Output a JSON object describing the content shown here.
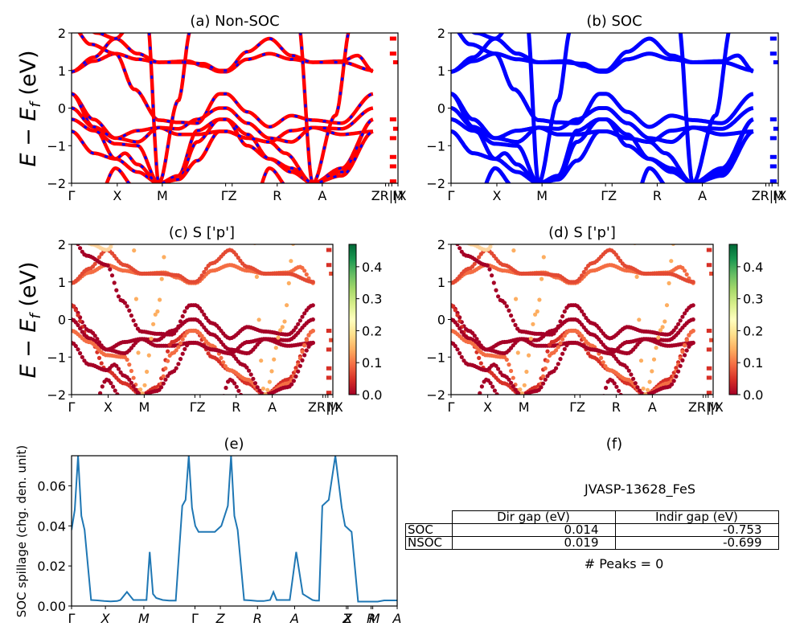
{
  "chart_data": [
    {
      "id": "a",
      "type": "line",
      "title": "(a) Non-SOC",
      "ylabel": "E − E_f (eV)",
      "ylim": [
        -2,
        2
      ],
      "yticks": [
        "2",
        "1",
        "0",
        "−1",
        "−2"
      ],
      "xticks": [
        "Γ",
        "X",
        "M",
        "Γ",
        "Z",
        "R",
        "A",
        "Z",
        "R",
        "|X",
        "M"
      ],
      "tick_labels_rendered": [
        "Γ",
        "X",
        "M",
        "ΓZ",
        "R",
        "A",
        "ZR||X",
        "M"
      ],
      "series": [
        {
          "name": "Non-SOC",
          "color": "#ff0000",
          "style": "solid"
        },
        {
          "name": "SOC overlay",
          "color": "#0000ff",
          "style": "dashed"
        }
      ]
    },
    {
      "id": "b",
      "type": "line",
      "title": "(b) SOC",
      "ylim": [
        -2,
        2
      ],
      "yticks": [
        "2",
        "1",
        "0",
        "−1",
        "−2"
      ],
      "tick_labels_rendered": [
        "Γ",
        "X",
        "M",
        "ΓZ",
        "R",
        "A",
        "ZR||X",
        "M"
      ],
      "series": [
        {
          "name": "SOC",
          "color": "#0000ff",
          "style": "solid"
        }
      ]
    },
    {
      "id": "c",
      "type": "scatter",
      "title": "(c)  S ['p']",
      "ylabel": "E − E_f (eV)",
      "ylim": [
        -2,
        2
      ],
      "yticks": [
        "2",
        "1",
        "0",
        "−1",
        "−2"
      ],
      "tick_labels_rendered": [
        "Γ",
        "X",
        "M",
        "ΓZ",
        "R",
        "A",
        "ZR||X",
        "M"
      ],
      "colorbar": {
        "cmap": "RdYlGn",
        "range": [
          0,
          0.47
        ],
        "ticks": [
          "0.0",
          "0.1",
          "0.2",
          "0.3",
          "0.4"
        ]
      }
    },
    {
      "id": "d",
      "type": "scatter",
      "title": "(d) S ['p']",
      "ylim": [
        -2,
        2
      ],
      "yticks": [
        "2",
        "1",
        "0",
        "−1",
        "−2"
      ],
      "tick_labels_rendered": [
        "Γ",
        "X",
        "M",
        "ΓZ",
        "R",
        "A",
        "ZR||X",
        "M"
      ],
      "colorbar": {
        "cmap": "RdYlGn",
        "range": [
          0,
          0.47
        ],
        "ticks": [
          "0.0",
          "0.1",
          "0.2",
          "0.3",
          "0.4"
        ]
      }
    },
    {
      "id": "e",
      "type": "line",
      "title": "(e)",
      "ylabel": "SOC spillage (chg. den. unit)",
      "ylim": [
        0,
        0.075
      ],
      "yticks": [
        "0.00",
        "0.02",
        "0.04",
        "0.06"
      ],
      "xticks": [
        "Γ",
        "X",
        "M",
        "Γ",
        "Z",
        "R",
        "A",
        "Z",
        "X",
        "R",
        "M",
        "A"
      ],
      "color": "#1f77b4",
      "x": [
        0,
        1,
        2,
        3,
        4,
        6,
        8,
        10,
        12,
        14,
        15,
        17,
        19,
        21,
        23,
        24,
        25,
        26,
        28,
        30,
        32,
        34,
        35,
        36,
        37,
        38,
        39,
        40,
        42,
        44,
        46,
        48,
        49,
        50,
        51,
        53,
        55,
        57,
        59,
        61,
        62,
        63,
        65,
        67,
        69,
        71,
        73,
        74,
        75,
        76,
        77,
        79,
        81,
        83,
        84,
        86,
        88,
        90,
        92,
        94,
        96,
        97,
        99,
        100
      ],
      "values": [
        0.038,
        0.048,
        0.075,
        0.045,
        0.038,
        0.003,
        0.0028,
        0.0025,
        0.0023,
        0.0025,
        0.003,
        0.007,
        0.003,
        0.003,
        0.003,
        0.027,
        0.006,
        0.004,
        0.003,
        0.0027,
        0.0027,
        0.05,
        0.053,
        0.075,
        0.049,
        0.04,
        0.037,
        0.037,
        0.037,
        0.037,
        0.04,
        0.05,
        0.075,
        0.045,
        0.038,
        0.003,
        0.0028,
        0.0025,
        0.0025,
        0.003,
        0.007,
        0.003,
        0.003,
        0.003,
        0.027,
        0.006,
        0.004,
        0.003,
        0.0027,
        0.0027,
        0.05,
        0.053,
        0.075,
        0.049,
        0.04,
        0.037,
        0.0022,
        0.0022,
        0.0022,
        0.0022,
        0.0028,
        0.0028,
        0.0028,
        0.0028
      ]
    }
  ],
  "panel_f": {
    "title": "(f)",
    "subtitle": "JVASP-13628_FeS",
    "table": {
      "columns": [
        "Dir gap (eV)",
        "Indir gap (eV)"
      ],
      "rows": [
        {
          "label": "SOC",
          "dir": "0.014",
          "indir": "-0.753"
        },
        {
          "label": "NSOC",
          "dir": "0.019",
          "indir": "-0.699"
        }
      ]
    },
    "peaks_label": "# Peaks = 0"
  }
}
